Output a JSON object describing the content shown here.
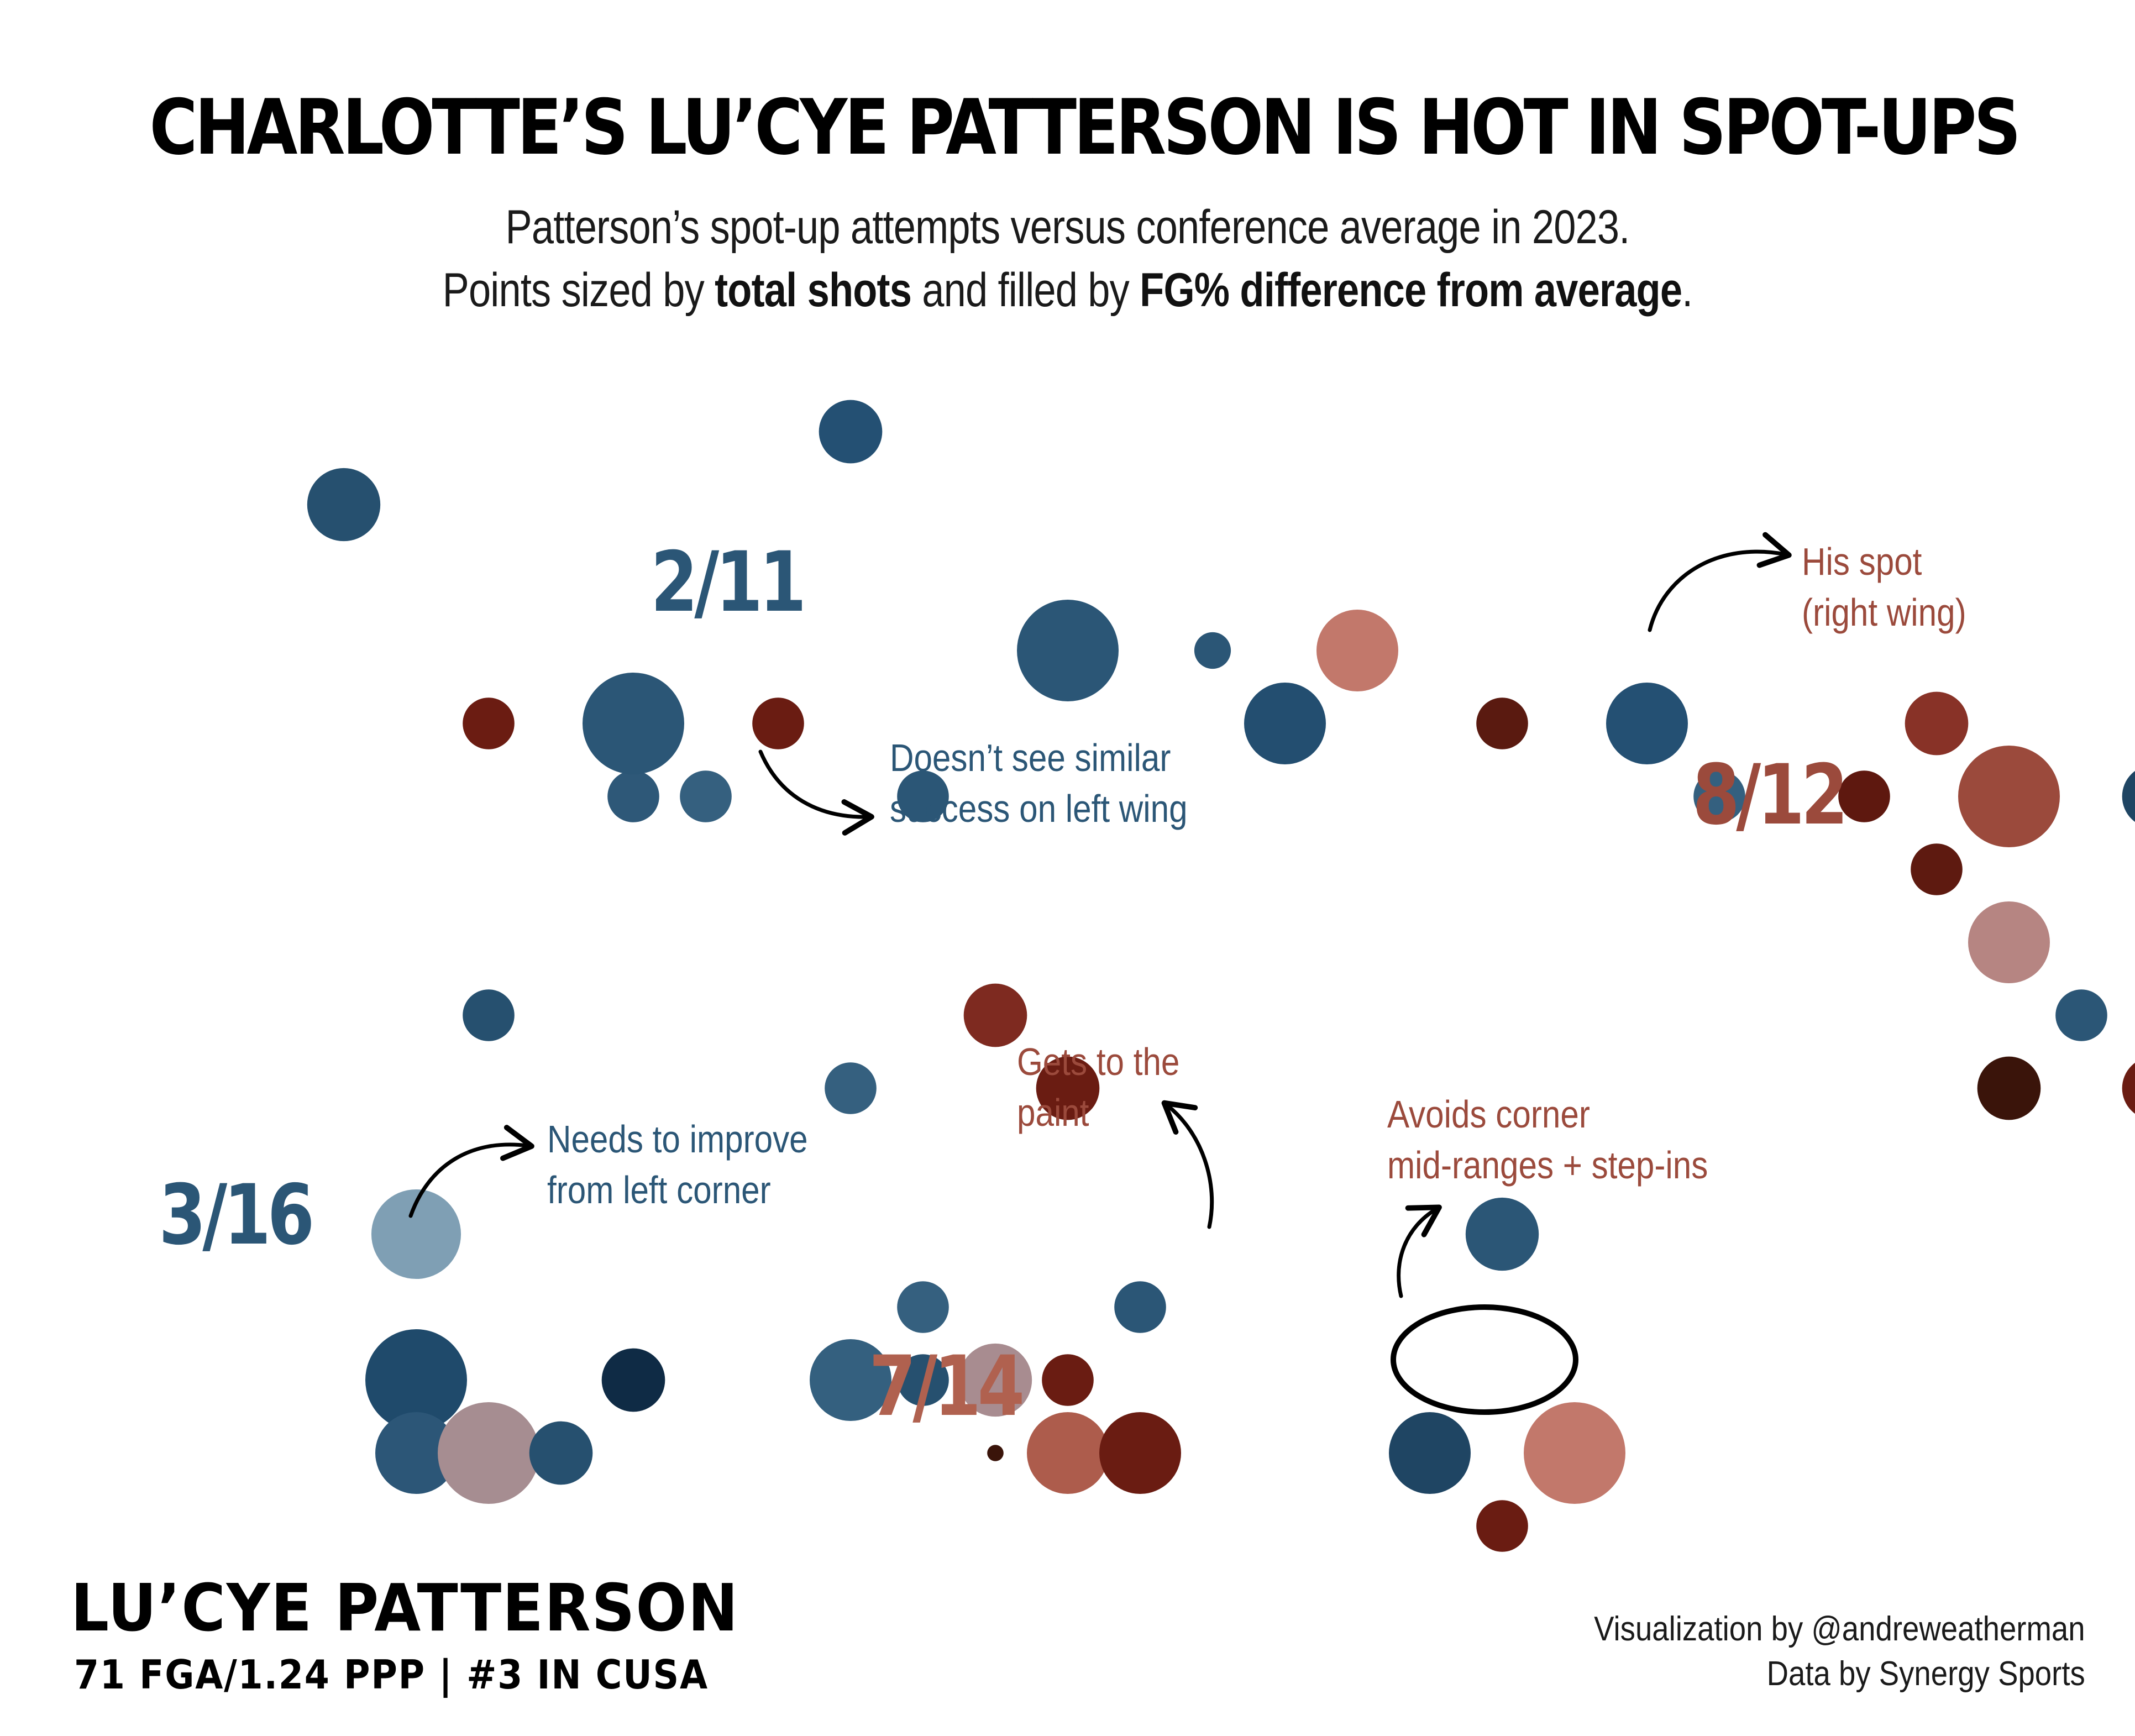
{
  "header": {
    "title": "CHARLOTTE’S LU’CYE PATTERSON IS HOT IN SPOT-UPS",
    "subtitle_line1": "Patterson’s spot-up attempts versus conference average in 2023.",
    "subtitle_line2_pre": "Points sized by ",
    "subtitle_line2_bold1": "total shots",
    "subtitle_line2_mid": " and filled by ",
    "subtitle_line2_bold2": "FG% difference from average",
    "subtitle_line2_post": "."
  },
  "footer": {
    "player_name": "LU’CYE PATTERSON",
    "player_stats": "71 FGA/1.24 PPP | #3 IN CUSA",
    "credit_viz": "Visualization by @andreweatherman",
    "credit_data": "Data by Synergy Sports"
  },
  "colors": {
    "cold": "#2b5676",
    "hot": "#9b4a3c",
    "neutral_light": "#b8a8ac",
    "ink": "#000000"
  },
  "chart_data": {
    "type": "scatter",
    "encoding": {
      "size": "total shots",
      "fill": "FG% difference from average"
    },
    "zone_labels": [
      {
        "id": "left-wing",
        "text": "2/11",
        "tone": "cold"
      },
      {
        "id": "right-wing",
        "text": "8/12",
        "tone": "hot"
      },
      {
        "id": "left-corner",
        "text": "3/16",
        "tone": "cold"
      },
      {
        "id": "paint",
        "text": "7/14",
        "tone": "hot"
      }
    ],
    "annotations": [
      {
        "id": "right-wing-note",
        "lines": [
          "His spot",
          "(right wing)"
        ],
        "tone": "hot"
      },
      {
        "id": "left-wing-note",
        "lines": [
          "Doesn’t see similar",
          "success on left wing"
        ],
        "tone": "cold"
      },
      {
        "id": "left-corner-note",
        "lines": [
          "Needs to improve",
          "from left corner"
        ],
        "tone": "cold"
      },
      {
        "id": "paint-note",
        "lines": [
          "Gets to the",
          "paint"
        ],
        "tone": "hot"
      },
      {
        "id": "corner-midrange-note",
        "lines": [
          "Avoids corner",
          "mid-ranges + step-ins"
        ],
        "tone": "hot"
      }
    ],
    "points": [
      {
        "x": 1,
        "y": 16,
        "shots": 2,
        "color": "#26506f"
      },
      {
        "x": 2,
        "y": 13,
        "shots": 1,
        "color": "#6b1c12"
      },
      {
        "x": 3,
        "y": 12,
        "shots": 1,
        "color": "#2e5878"
      },
      {
        "x": 5,
        "y": 12,
        "shots": 1,
        "color": "#2b5676"
      },
      {
        "x": 6,
        "y": 14,
        "shots": 4,
        "color": "#2b5676"
      },
      {
        "x": 7,
        "y": 14,
        "shots": 0.5,
        "color": "#2b5676"
      },
      {
        "x": 8,
        "y": 14,
        "shots": 2.5,
        "color": "#c2786b"
      },
      {
        "x": 7.5,
        "y": 13,
        "shots": 2.5,
        "color": "#234e70"
      },
      {
        "x": 9,
        "y": 13,
        "shots": 1,
        "color": "#5a1a10"
      },
      {
        "x": 10,
        "y": 13,
        "shots": 2.5,
        "color": "#245073"
      },
      {
        "x": 10.5,
        "y": 12,
        "shots": 1,
        "color": "#34607f"
      },
      {
        "x": 11.5,
        "y": 12,
        "shots": 1,
        "color": "#5e180f"
      },
      {
        "x": 12,
        "y": 13,
        "shots": 1.5,
        "color": "#883227"
      },
      {
        "x": 12.5,
        "y": 12,
        "shots": 4,
        "color": "#9b4a3c"
      },
      {
        "x": 13.5,
        "y": 12,
        "shots": 1.5,
        "color": "#1f4563"
      },
      {
        "x": 12,
        "y": 11,
        "shots": 1,
        "color": "#5e1a10"
      },
      {
        "x": 12.5,
        "y": 10,
        "shots": 2.5,
        "color": "#b68582"
      },
      {
        "x": 13,
        "y": 9,
        "shots": 1,
        "color": "#2b5676"
      },
      {
        "x": 12.5,
        "y": 8,
        "shots": 1.5,
        "color": "#3a140a"
      },
      {
        "x": 13.5,
        "y": 8,
        "shots": 1.5,
        "color": "#6a1c12"
      },
      {
        "x": 4,
        "y": 13,
        "shots": 1,
        "color": "#6a1c12"
      },
      {
        "x": 3,
        "y": 13,
        "shots": 4,
        "color": "#2b5676"
      },
      {
        "x": 3.5,
        "y": 12,
        "shots": 1,
        "color": "#35607f"
      },
      {
        "x": 2,
        "y": 9,
        "shots": 1,
        "color": "#26506f"
      },
      {
        "x": 4.5,
        "y": 8,
        "shots": 1,
        "color": "#35607f"
      },
      {
        "x": 5.5,
        "y": 9,
        "shots": 1.5,
        "color": "#7e2a20"
      },
      {
        "x": 6,
        "y": 8,
        "shots": 1.5,
        "color": "#6a1c12"
      },
      {
        "x": 4.5,
        "y": 17,
        "shots": 1.5,
        "color": "#245073"
      },
      {
        "x": 1.5,
        "y": 6,
        "shots": 3,
        "color": "#7f9fb4"
      },
      {
        "x": 1.5,
        "y": 4,
        "shots": 5,
        "color": "#1f4a6b"
      },
      {
        "x": 1.5,
        "y": 3,
        "shots": 2.5,
        "color": "#2c5677"
      },
      {
        "x": 2,
        "y": 3,
        "shots": 5,
        "color": "#a68d91"
      },
      {
        "x": 2.5,
        "y": 3,
        "shots": 1.5,
        "color": "#26506f"
      },
      {
        "x": 3,
        "y": 4,
        "shots": 1.5,
        "color": "#0f2b45"
      },
      {
        "x": 4.5,
        "y": 4,
        "shots": 2.5,
        "color": "#34607f"
      },
      {
        "x": 5,
        "y": 5,
        "shots": 1,
        "color": "#35607f"
      },
      {
        "x": 5,
        "y": 4,
        "shots": 1,
        "color": "#26506f"
      },
      {
        "x": 5.5,
        "y": 4,
        "shots": 2,
        "color": "#a88c90"
      },
      {
        "x": 5.5,
        "y": 3,
        "shots": 0.1,
        "color": "#3a140a"
      },
      {
        "x": 6,
        "y": 3,
        "shots": 2.5,
        "color": "#ad5c4c"
      },
      {
        "x": 6,
        "y": 4,
        "shots": 1,
        "color": "#6a1c12"
      },
      {
        "x": 6.5,
        "y": 5,
        "shots": 1,
        "color": "#2b5676"
      },
      {
        "x": 6.5,
        "y": 3,
        "shots": 2.5,
        "color": "#6a1c12"
      },
      {
        "x": 8.5,
        "y": 3,
        "shots": 2.5,
        "color": "#1f4563"
      },
      {
        "x": 9.5,
        "y": 3,
        "shots": 4,
        "color": "#c2786b"
      },
      {
        "x": 9,
        "y": 6,
        "shots": 2,
        "color": "#2b5676"
      },
      {
        "x": 9,
        "y": 2,
        "shots": 1,
        "color": "#6a1c12"
      }
    ]
  }
}
